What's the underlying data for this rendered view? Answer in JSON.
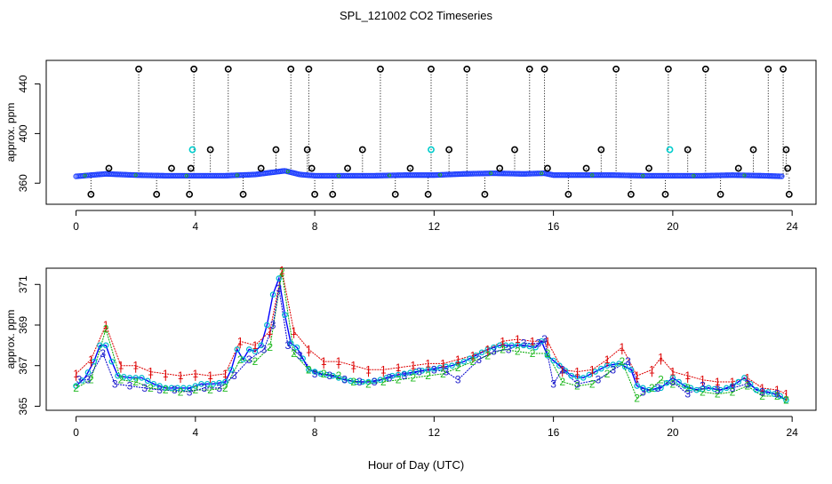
{
  "chart_data": [
    {
      "type": "scatter",
      "title": "SPL_121002  CO2 Timeseries",
      "xlabel": "",
      "ylabel": "approx. ppm",
      "xlim": [
        -1,
        24.8
      ],
      "ylim": [
        343,
        459
      ],
      "xticks": [
        0,
        4,
        8,
        12,
        16,
        20,
        24
      ],
      "xtick_labels": [
        "0",
        "4",
        "8",
        "12",
        "16",
        "20",
        "24"
      ],
      "yticks": [
        360,
        400,
        440
      ],
      "ytick_labels": [
        "360",
        "400",
        "440"
      ],
      "baseline_series": {
        "name": "CO2 (blue circles)",
        "x": [
          0,
          1,
          2,
          3,
          4,
          5,
          6,
          6.5,
          7,
          7.5,
          8,
          9,
          10,
          11,
          12,
          13,
          14,
          15,
          15.7,
          16,
          17,
          18,
          19,
          20,
          21,
          22,
          23,
          23.7
        ],
        "y": [
          365.5,
          367.5,
          366.5,
          366,
          366,
          366,
          367,
          368.5,
          370,
          367,
          366,
          366,
          366,
          366.5,
          366.5,
          367.5,
          368,
          367.5,
          368,
          366.5,
          366.5,
          366.5,
          366,
          366,
          366,
          366.5,
          366,
          365.5
        ]
      },
      "spike_series": {
        "name": "spikes (black circles with dotted drop lines)",
        "x": [
          0.5,
          1.1,
          2.1,
          2.7,
          3.2,
          3.8,
          3.85,
          3.95,
          4.5,
          5.1,
          5.6,
          6.2,
          6.7,
          7.2,
          7.75,
          7.8,
          7.9,
          8,
          8.6,
          9.1,
          9.6,
          10.2,
          10.7,
          11.2,
          11.8,
          11.9,
          12.5,
          13.1,
          13.7,
          14.2,
          14.7,
          15.2,
          15.7,
          15.8,
          16.5,
          17.1,
          17.6,
          18.1,
          18.6,
          19.2,
          19.75,
          19.85,
          20.5,
          21.1,
          21.6,
          22.2,
          22.7,
          23.2,
          23.7,
          23.8,
          23.85,
          23.9
        ],
        "y": [
          351,
          372,
          452,
          351,
          372,
          351,
          372,
          452,
          387,
          452,
          351,
          372,
          387,
          452,
          387,
          452,
          372,
          351,
          351,
          372,
          387,
          452,
          351,
          372,
          351,
          452,
          387,
          452,
          351,
          372,
          387,
          452,
          452,
          372,
          351,
          372,
          387,
          452,
          351,
          372,
          351,
          452,
          387,
          452,
          351,
          372,
          387,
          452,
          452,
          387,
          372,
          351
        ]
      },
      "outlier_series": {
        "name": "cyan outliers",
        "x": [
          3.9,
          11.9,
          19.9
        ],
        "y": [
          387,
          387,
          387
        ]
      }
    },
    {
      "type": "line",
      "title": "",
      "xlabel": "Hour of Day (UTC)",
      "ylabel": "approx. ppm",
      "xlim": [
        -1,
        24.8
      ],
      "ylim": [
        364.8,
        371.8
      ],
      "xticks": [
        0,
        4,
        8,
        12,
        16,
        20,
        24
      ],
      "xtick_labels": [
        "0",
        "4",
        "8",
        "12",
        "16",
        "20",
        "24"
      ],
      "yticks": [
        365,
        367,
        369,
        371
      ],
      "ytick_labels": [
        "365",
        "367",
        "369",
        "371"
      ],
      "series": [
        {
          "name": "mean (circles)",
          "marker_label": "o",
          "x": [
            0,
            0.3,
            0.6,
            0.8,
            1.0,
            1.2,
            1.4,
            1.8,
            2.2,
            2.6,
            3.0,
            3.4,
            3.8,
            4.2,
            4.6,
            5.0,
            5.2,
            5.4,
            5.6,
            5.8,
            6.0,
            6.2,
            6.4,
            6.6,
            6.8,
            7.0,
            7.2,
            7.4,
            7.8,
            8.2,
            8.6,
            9.0,
            9.4,
            9.8,
            10.2,
            10.6,
            11.0,
            11.4,
            11.8,
            12.2,
            12.6,
            13.0,
            13.4,
            13.8,
            14.2,
            14.6,
            15.0,
            15.4,
            15.6,
            15.8,
            16.2,
            16.6,
            17.0,
            17.4,
            17.8,
            18.2,
            18.6,
            18.8,
            19.2,
            19.6,
            20.0,
            20.4,
            20.8,
            21.2,
            21.6,
            22.0,
            22.4,
            22.8,
            23.2,
            23.6,
            23.8
          ],
          "y": [
            366.0,
            366.4,
            367.2,
            368.0,
            368.0,
            367.2,
            366.5,
            366.4,
            366.4,
            366.1,
            365.9,
            365.9,
            365.9,
            366.1,
            366.1,
            366.2,
            366.8,
            367.8,
            367.3,
            367.8,
            367.7,
            368.0,
            369.0,
            370.5,
            371.3,
            369.5,
            368.1,
            367.9,
            366.8,
            366.6,
            366.5,
            366.3,
            366.2,
            366.2,
            366.3,
            366.5,
            366.6,
            366.7,
            366.8,
            366.9,
            367.0,
            367.2,
            367.5,
            367.8,
            368.0,
            368.0,
            368.0,
            367.9,
            368.2,
            367.5,
            367.0,
            366.5,
            366.4,
            366.7,
            367.0,
            367.1,
            366.8,
            366.0,
            365.8,
            365.9,
            366.4,
            366.0,
            365.8,
            365.9,
            365.8,
            366.0,
            366.4,
            365.8,
            365.7,
            365.5,
            365.3
          ]
        },
        {
          "name": "series 1",
          "marker_label": "1",
          "x": [
            0,
            0.5,
            1.0,
            1.5,
            2.0,
            2.5,
            3.0,
            3.5,
            4.0,
            4.5,
            5.0,
            5.5,
            6.0,
            6.5,
            6.9,
            7.3,
            7.8,
            8.3,
            8.8,
            9.3,
            9.8,
            10.3,
            10.8,
            11.3,
            11.8,
            12.3,
            12.8,
            13.3,
            13.8,
            14.3,
            14.8,
            15.3,
            15.8,
            16.3,
            16.8,
            17.3,
            17.8,
            18.3,
            18.8,
            19.3,
            19.6,
            20.0,
            20.5,
            21.0,
            21.5,
            22.0,
            22.5,
            23.0,
            23.5,
            23.8
          ],
          "y": [
            366.6,
            367.3,
            369.0,
            367.0,
            367.0,
            366.7,
            366.6,
            366.5,
            366.6,
            366.5,
            366.6,
            368.2,
            368.0,
            368.7,
            371.7,
            368.7,
            367.8,
            367.2,
            367.2,
            367.0,
            366.8,
            366.8,
            366.9,
            367.0,
            367.1,
            367.1,
            367.3,
            367.5,
            367.8,
            368.2,
            368.3,
            368.2,
            368.2,
            366.8,
            366.7,
            366.8,
            367.3,
            367.9,
            366.5,
            366.8,
            367.4,
            366.7,
            366.5,
            366.3,
            366.2,
            366.2,
            366.4,
            365.9,
            365.8,
            365.6
          ]
        },
        {
          "name": "series 2",
          "marker_label": "2",
          "x": [
            0,
            0.5,
            1.0,
            1.5,
            2.0,
            2.5,
            3.0,
            3.5,
            4.0,
            4.5,
            5.0,
            5.5,
            6.0,
            6.5,
            6.9,
            7.3,
            7.8,
            8.3,
            8.8,
            9.3,
            9.8,
            10.3,
            10.8,
            11.3,
            11.8,
            12.3,
            12.8,
            13.3,
            13.8,
            14.3,
            14.8,
            15.3,
            15.8,
            16.3,
            16.8,
            17.3,
            17.8,
            18.3,
            18.8,
            19.3,
            19.6,
            20.0,
            20.5,
            21.0,
            21.5,
            22.0,
            22.5,
            23.0,
            23.5,
            23.8
          ],
          "y": [
            365.9,
            366.3,
            368.8,
            366.3,
            366.2,
            365.9,
            365.8,
            365.7,
            365.8,
            365.8,
            365.9,
            367.3,
            367.2,
            367.9,
            371.6,
            367.6,
            366.8,
            366.6,
            366.5,
            366.2,
            366.1,
            366.2,
            366.3,
            366.4,
            366.5,
            366.6,
            366.9,
            367.2,
            367.5,
            367.8,
            367.7,
            367.6,
            367.6,
            366.2,
            366.0,
            366.1,
            366.6,
            367.2,
            365.4,
            365.9,
            366.3,
            366.1,
            365.9,
            365.7,
            365.6,
            365.7,
            366.0,
            365.5,
            365.5,
            365.3
          ]
        },
        {
          "name": "series 3",
          "marker_label": "3",
          "x": [
            0.1,
            0.4,
            0.9,
            1.3,
            1.8,
            2.3,
            2.8,
            3.3,
            3.8,
            4.3,
            4.8,
            5.3,
            5.8,
            6.3,
            6.6,
            6.8,
            7.1,
            7.5,
            8.0,
            8.5,
            9.0,
            9.5,
            10.0,
            10.5,
            11.0,
            11.5,
            12.0,
            12.4,
            12.8,
            13.5,
            14.0,
            14.5,
            15.0,
            15.5,
            15.7,
            16.0,
            16.3,
            16.8,
            17.5,
            18.0,
            18.5,
            19.0,
            19.5,
            20.0,
            20.5,
            21.0,
            21.5,
            22.0,
            22.5,
            23.0,
            23.5
          ],
          "y": [
            366.3,
            366.3,
            367.6,
            366.1,
            366.0,
            365.9,
            365.8,
            365.8,
            365.7,
            365.9,
            365.9,
            366.5,
            367.3,
            367.8,
            369.0,
            370.8,
            368.0,
            367.5,
            366.6,
            366.5,
            366.3,
            366.2,
            366.2,
            366.4,
            366.5,
            366.7,
            366.8,
            366.7,
            366.3,
            367.3,
            367.7,
            367.8,
            368.1,
            368.1,
            368.3,
            366.1,
            366.8,
            366.1,
            366.3,
            366.8,
            367.2,
            365.7,
            365.9,
            366.2,
            365.6,
            366.0,
            365.8,
            365.9,
            366.1,
            365.7,
            365.6
          ]
        }
      ]
    }
  ]
}
